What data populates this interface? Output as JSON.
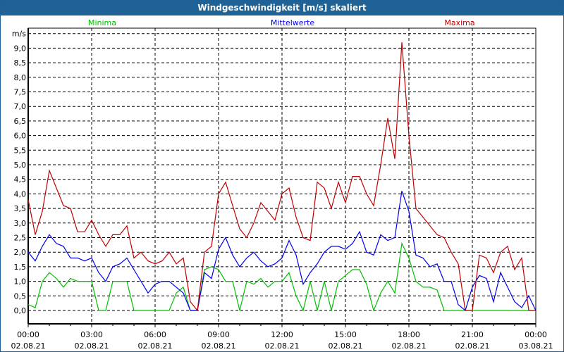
{
  "window": {
    "title": "Windgeschwindigkeit [m/s] skaliert"
  },
  "chart_data": {
    "type": "line",
    "title": "Windgeschwindigkeit [m/s] skaliert",
    "ylabel": "m/s",
    "xlabel": "",
    "ylim": [
      -0.5,
      9.5
    ],
    "yticks": [
      "0,0",
      "0,5",
      "1,0",
      "1,5",
      "2,0",
      "2,5",
      "3,0",
      "3,5",
      "4,0",
      "4,5",
      "5,0",
      "5,5",
      "6,0",
      "6,5",
      "7,0",
      "7,5",
      "8,0",
      "8,5",
      "9,0"
    ],
    "ytick_values": [
      0,
      0.5,
      1,
      1.5,
      2,
      2.5,
      3,
      3.5,
      4,
      4.5,
      5,
      5.5,
      6,
      6.5,
      7,
      7.5,
      8,
      8.5,
      9
    ],
    "xrange_hours": [
      0,
      24
    ],
    "sample_step_minutes": 20,
    "xticks": [
      {
        "time": "00:00",
        "date": "02.08.21",
        "hour": 0
      },
      {
        "time": "03:00",
        "date": "02.08.21",
        "hour": 3
      },
      {
        "time": "06:00",
        "date": "02.08.21",
        "hour": 6
      },
      {
        "time": "09:00",
        "date": "02.08.21",
        "hour": 9
      },
      {
        "time": "12:00",
        "date": "02.08.21",
        "hour": 12
      },
      {
        "time": "15:00",
        "date": "02.08.21",
        "hour": 15
      },
      {
        "time": "18:00",
        "date": "02.08.21",
        "hour": 18
      },
      {
        "time": "21:00",
        "date": "02.08.21",
        "hour": 21
      },
      {
        "time": "00:00",
        "date": "03.08.21",
        "hour": 24
      }
    ],
    "grid": true,
    "legend_placement": "top",
    "series": [
      {
        "name": "Minima",
        "color": "#00c000",
        "values": [
          0.2,
          0.1,
          1.0,
          1.3,
          1.1,
          0.8,
          1.1,
          1.0,
          1.0,
          1.0,
          0,
          0,
          1.0,
          1.0,
          1.0,
          0,
          0,
          0,
          0,
          0,
          0,
          0.6,
          0.8,
          0,
          0,
          1.4,
          1.5,
          1.4,
          1.0,
          1.0,
          0,
          1.0,
          0.9,
          1.1,
          0.8,
          1.0,
          1.0,
          1.3,
          0.5,
          0,
          1.0,
          0,
          1.0,
          0,
          1.0,
          1.2,
          1.4,
          1.4,
          0.9,
          0,
          0.6,
          1.0,
          0.6,
          2.3,
          1.8,
          1.0,
          0.8,
          0.8,
          0.7,
          0,
          0,
          0,
          0,
          0,
          0,
          0,
          0,
          0,
          0,
          0,
          0,
          0,
          0
        ]
      },
      {
        "name": "Mittelwerte",
        "color": "#0000ee",
        "values": [
          2.0,
          1.7,
          2.2,
          2.6,
          2.3,
          2.2,
          1.8,
          1.8,
          1.7,
          1.8,
          1.3,
          1.0,
          1.5,
          1.6,
          1.8,
          1.4,
          1.0,
          0.6,
          0.9,
          1.0,
          1.0,
          0.8,
          0.6,
          0.0,
          0.0,
          1.3,
          1.1,
          2.1,
          2.5,
          1.9,
          1.5,
          1.8,
          2.0,
          1.7,
          1.5,
          1.6,
          1.8,
          2.4,
          1.9,
          0.9,
          1.3,
          1.6,
          2.0,
          2.2,
          2.2,
          2.1,
          2.3,
          2.7,
          2.0,
          1.9,
          2.6,
          2.4,
          2.5,
          4.1,
          3.4,
          1.9,
          1.8,
          1.5,
          1.6,
          1.0,
          1.0,
          0.2,
          0,
          0.8,
          1.2,
          1.1,
          0.3,
          1.3,
          0.8,
          0.3,
          0.1,
          0.5,
          0
        ]
      },
      {
        "name": "Maxima",
        "color": "#c00000",
        "values": [
          3.8,
          2.6,
          3.4,
          4.8,
          4.2,
          3.6,
          3.5,
          2.7,
          2.7,
          3.1,
          2.6,
          2.2,
          2.6,
          2.6,
          2.9,
          1.8,
          2.0,
          1.7,
          1.6,
          1.7,
          2.0,
          1.6,
          1.8,
          0.3,
          0.0,
          2.0,
          2.2,
          4.0,
          4.4,
          3.6,
          2.8,
          2.5,
          3.0,
          3.7,
          3.4,
          3.1,
          4.0,
          4.2,
          3.2,
          2.5,
          2.4,
          4.4,
          4.2,
          3.5,
          4.4,
          3.7,
          4.6,
          4.6,
          4.0,
          3.6,
          5.0,
          6.6,
          5.2,
          9.2,
          6.0,
          3.5,
          3.2,
          2.9,
          2.6,
          2.5,
          2.0,
          1.6,
          0,
          0,
          1.9,
          1.8,
          1.3,
          2.0,
          2.2,
          1.4,
          1.8,
          0,
          0
        ]
      }
    ]
  }
}
